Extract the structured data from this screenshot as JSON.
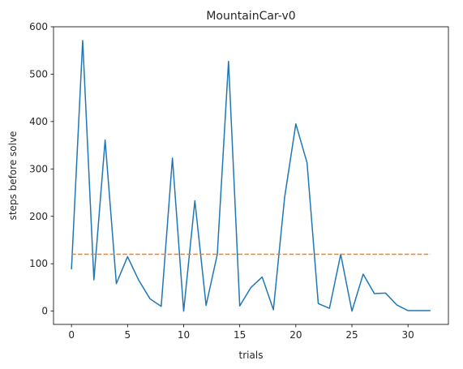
{
  "chart_data": {
    "type": "line",
    "title": "MountainCar-v0",
    "xlabel": "trials",
    "ylabel": "steps before solve",
    "xlim": [
      -1.6,
      33.6
    ],
    "ylim": [
      -28,
      600
    ],
    "xticks": [
      0,
      5,
      10,
      15,
      20,
      25,
      30
    ],
    "yticks": [
      0,
      100,
      200,
      300,
      400,
      500,
      600
    ],
    "grid": false,
    "series": [
      {
        "color": "#1f77b4",
        "style": "solid",
        "x": [
          0,
          1,
          2,
          3,
          4,
          5,
          6,
          7,
          8,
          9,
          10,
          11,
          12,
          13,
          14,
          15,
          16,
          17,
          18,
          19,
          20,
          21,
          22,
          23,
          24,
          25,
          26,
          27,
          28,
          29,
          30,
          31,
          32
        ],
        "values": [
          88,
          571,
          66,
          361,
          58,
          115,
          65,
          26,
          10,
          323,
          0,
          233,
          12,
          120,
          527,
          11,
          50,
          72,
          3,
          240,
          395,
          313,
          16,
          6,
          120,
          0,
          78,
          37,
          38,
          13,
          1,
          1,
          1
        ]
      },
      {
        "color": "#ff7f0e",
        "style": "dashed",
        "x": [
          0,
          32
        ],
        "values": [
          120,
          120
        ]
      }
    ]
  }
}
